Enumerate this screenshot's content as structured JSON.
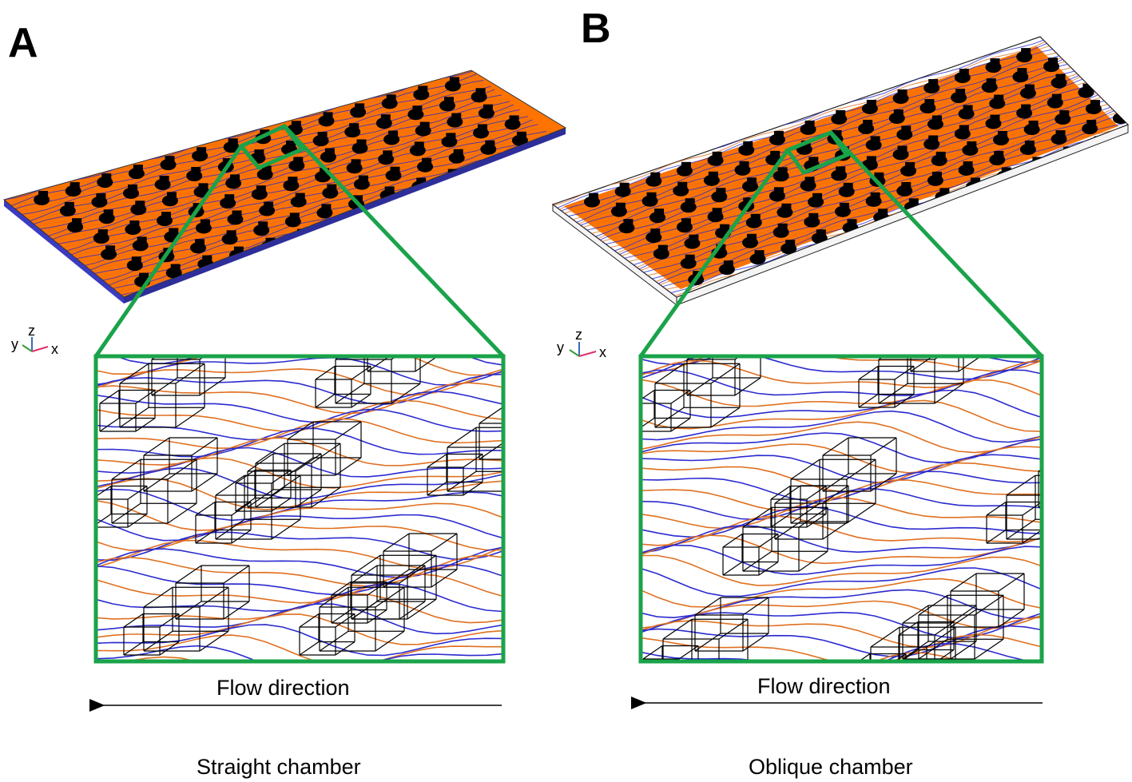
{
  "panels": [
    {
      "label": "A",
      "flow_label": "Flow direction",
      "caption": "Straight chamber",
      "axes": {
        "y": "y",
        "z": "z",
        "x": "x"
      },
      "inset_axes": {
        "z": "z",
        "y": "y"
      }
    },
    {
      "label": "B",
      "flow_label": "Flow direction",
      "caption": "Oblique chamber",
      "axes": {
        "y": "y",
        "z": "z",
        "x": "x"
      },
      "inset_axes": {
        "z": "z",
        "y": "y"
      }
    }
  ],
  "colors": {
    "chamber_fill": "#ff7300",
    "streamline_orange": "#e07020",
    "streamline_blue": "#2b2bd0",
    "highlight_green": "#1aa34a",
    "pillar": "#000000",
    "axis_x": "#e0306a",
    "axis_y": "#3a9a3a",
    "axis_z": "#3a6ac0"
  }
}
